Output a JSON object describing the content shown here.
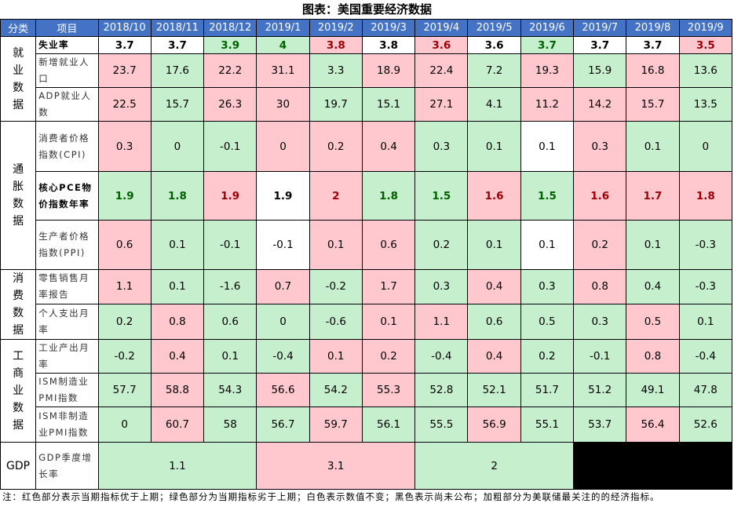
{
  "title": "图表：美国重要经济数据",
  "header": {
    "category": "分类",
    "item": "项目",
    "months": [
      "2018/10",
      "2018/11",
      "2018/12",
      "2019/1",
      "2019/2",
      "2019/3",
      "2019/4",
      "2019/5",
      "2019/6",
      "2019/7",
      "2019/8",
      "2019/9"
    ]
  },
  "categories": {
    "employment": "就业数据",
    "inflation": "通胀数据",
    "consumption": "消费数据",
    "industry": "工商业数据",
    "gdp": "GDP"
  },
  "rows": [
    {
      "label": "失业率",
      "bold": true,
      "values": [
        "3.7",
        "3.7",
        "3.9",
        "4",
        "3.8",
        "3.8",
        "3.6",
        "3.6",
        "3.7",
        "3.7",
        "3.7",
        "3.5"
      ],
      "colors": [
        "w",
        "w",
        "g",
        "g",
        "r",
        "w",
        "r",
        "w",
        "g",
        "w",
        "w",
        "r"
      ]
    },
    {
      "label": "新增就业人口",
      "bold": false,
      "values": [
        "23.7",
        "17.6",
        "22.2",
        "31.1",
        "3.3",
        "18.9",
        "22.4",
        "7.2",
        "19.3",
        "15.9",
        "16.8",
        "13.6"
      ],
      "colors": [
        "r",
        "g",
        "r",
        "r",
        "g",
        "r",
        "r",
        "g",
        "r",
        "g",
        "r",
        "g"
      ]
    },
    {
      "label": "ADP就业人数",
      "bold": false,
      "values": [
        "22.5",
        "15.7",
        "26.3",
        "30",
        "19.7",
        "15.1",
        "27.1",
        "4.1",
        "11.2",
        "14.2",
        "15.7",
        "13.5"
      ],
      "colors": [
        "r",
        "g",
        "r",
        "r",
        "g",
        "g",
        "r",
        "g",
        "r",
        "r",
        "r",
        "g"
      ]
    },
    {
      "label": "消费者价格指数(CPI)",
      "bold": false,
      "values": [
        "0.3",
        "0",
        "-0.1",
        "0",
        "0.2",
        "0.4",
        "0.3",
        "0.1",
        "0.1",
        "0.3",
        "0.1",
        "0"
      ],
      "colors": [
        "r",
        "g",
        "g",
        "r",
        "r",
        "r",
        "g",
        "g",
        "w",
        "r",
        "g",
        "g"
      ]
    },
    {
      "label": "核心PCE物价指数年率",
      "bold": true,
      "values": [
        "1.9",
        "1.8",
        "1.9",
        "1.9",
        "2",
        "1.8",
        "1.5",
        "1.6",
        "1.5",
        "1.6",
        "1.7",
        "1.8"
      ],
      "colors": [
        "g",
        "g",
        "r",
        "w",
        "r",
        "g",
        "g",
        "r",
        "g",
        "r",
        "r",
        "r"
      ]
    },
    {
      "label": "生产者价格指数(PPI)",
      "bold": false,
      "values": [
        "0.6",
        "0.1",
        "-0.1",
        "-0.1",
        "0.1",
        "0.6",
        "0.2",
        "0.1",
        "0.1",
        "0.2",
        "0.1",
        "-0.3"
      ],
      "colors": [
        "r",
        "g",
        "g",
        "w",
        "r",
        "r",
        "g",
        "g",
        "w",
        "r",
        "g",
        "g"
      ]
    },
    {
      "label": "零售销售月率报告",
      "bold": false,
      "values": [
        "1.1",
        "0.1",
        "-1.6",
        "0.7",
        "-0.2",
        "1.7",
        "0.3",
        "0.4",
        "0.3",
        "0.8",
        "0.4",
        "-0.3"
      ],
      "colors": [
        "r",
        "g",
        "g",
        "r",
        "g",
        "r",
        "g",
        "r",
        "g",
        "r",
        "g",
        "g"
      ]
    },
    {
      "label": "个人支出月率",
      "bold": false,
      "values": [
        "0.2",
        "0.8",
        "0.6",
        "0",
        "-0.6",
        "0.1",
        "1.1",
        "0.6",
        "0.5",
        "0.3",
        "0.5",
        "0.1"
      ],
      "colors": [
        "g",
        "r",
        "g",
        "g",
        "g",
        "r",
        "r",
        "g",
        "g",
        "g",
        "r",
        "g"
      ]
    },
    {
      "label": "工业产出月率",
      "bold": false,
      "values": [
        "-0.2",
        "0.4",
        "0.1",
        "-0.4",
        "0.1",
        "0.2",
        "-0.4",
        "0.4",
        "0.2",
        "-0.1",
        "0.8",
        "-0.4"
      ],
      "colors": [
        "g",
        "r",
        "g",
        "g",
        "r",
        "r",
        "g",
        "r",
        "g",
        "g",
        "r",
        "g"
      ]
    },
    {
      "label": "ISM制造业PMI指数",
      "bold": false,
      "values": [
        "57.7",
        "58.8",
        "54.3",
        "56.6",
        "54.2",
        "55.3",
        "52.8",
        "52.1",
        "51.7",
        "51.2",
        "49.1",
        "47.8"
      ],
      "colors": [
        "g",
        "r",
        "g",
        "r",
        "g",
        "r",
        "g",
        "g",
        "g",
        "g",
        "g",
        "g"
      ]
    },
    {
      "label": "ISM非制造业PMI指数",
      "bold": false,
      "values": [
        "0",
        "60.7",
        "58",
        "56.7",
        "59.7",
        "56.1",
        "55.5",
        "56.9",
        "55.1",
        "53.7",
        "56.4",
        "52.6"
      ],
      "colors": [
        "g",
        "r",
        "g",
        "g",
        "r",
        "g",
        "g",
        "r",
        "g",
        "g",
        "r",
        "g"
      ]
    }
  ],
  "gdp": {
    "label": "GDP季度增长率",
    "values": [
      "1.1",
      "3.1",
      "2"
    ],
    "colors": [
      "g",
      "r",
      "g",
      "k"
    ]
  },
  "note": "注：红色部分表示当期指标优于上期；绿色部分为当期指标劣于上期；白色表示数值不变；黑色表示尚未公布；加粗部分为美联储最关注的的经济指标。"
}
